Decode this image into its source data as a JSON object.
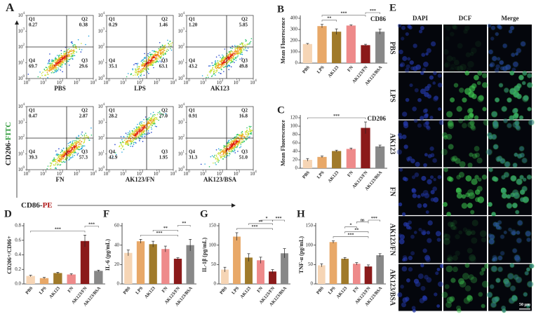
{
  "flow": {
    "panel": "A",
    "tick_base": "10",
    "tick_exponents": [
      0,
      1,
      2,
      3,
      4
    ],
    "ylabel_parts": [
      {
        "text": "CD206-",
        "color": "#222222"
      },
      {
        "text": "FITC",
        "color": "#2e9a3a"
      }
    ],
    "xlabel_parts": [
      {
        "text": "CD86-",
        "color": "#222222"
      },
      {
        "text": "PE",
        "color": "#b01818"
      }
    ],
    "samples": [
      {
        "name": "PBS",
        "quadrants": [
          {
            "name": "Q1",
            "value": 0.27
          },
          {
            "name": "Q2",
            "value": 0.38
          },
          {
            "name": "Q3",
            "value": 29.6
          },
          {
            "name": "Q4",
            "value": 69.7
          }
        ]
      },
      {
        "name": "LPS",
        "quadrants": [
          {
            "name": "Q1",
            "value": 0.29
          },
          {
            "name": "Q2",
            "value": 1.46
          },
          {
            "name": "Q3",
            "value": 63.1
          },
          {
            "name": "Q4",
            "value": 35.1
          }
        ]
      },
      {
        "name": "AK123",
        "quadrants": [
          {
            "name": "Q1",
            "value": 1.2,
            "label": "1.20"
          },
          {
            "name": "Q2",
            "value": 5.85
          },
          {
            "name": "Q3",
            "value": 49.8
          },
          {
            "name": "Q4",
            "value": 43.2
          }
        ]
      },
      {
        "name": "FN",
        "quadrants": [
          {
            "name": "Q1",
            "value": 0.47
          },
          {
            "name": "Q2",
            "value": 2.87
          },
          {
            "name": "Q3",
            "value": 57.3
          },
          {
            "name": "Q4",
            "value": 39.3
          }
        ]
      },
      {
        "name": "AK123/FN",
        "quadrants": [
          {
            "name": "Q1",
            "value": 28.2
          },
          {
            "name": "Q2",
            "value": 27,
            "label": "27.0"
          },
          {
            "name": "Q3",
            "value": 1.95
          },
          {
            "name": "Q4",
            "value": 42.9
          }
        ]
      },
      {
        "name": "AK123/BSA",
        "quadrants": [
          {
            "name": "Q1",
            "value": 0.91
          },
          {
            "name": "Q2",
            "value": 16.8
          },
          {
            "name": "Q3",
            "value": 51,
            "label": "51.0"
          },
          {
            "name": "Q4",
            "value": 31.3
          }
        ]
      }
    ]
  },
  "chart_data": [
    {
      "type": "bar",
      "panel": "B",
      "ylabel": "Mean Fluorescence",
      "marker": {
        "text": "CD86",
        "color": "#2e9a3a"
      },
      "categories": [
        "PBS",
        "LPS",
        "AK123",
        "FN",
        "AK123/FN",
        "AK123/BSA"
      ],
      "values": [
        170,
        330,
        280,
        335,
        160,
        280
      ],
      "errors": [
        5,
        15,
        25,
        5,
        8,
        22
      ],
      "colors": [
        "#f6d5b5",
        "#e8a868",
        "#a07a2a",
        "#ee8a8a",
        "#8b1a1a",
        "#888888"
      ],
      "ylim": [
        0,
        400
      ],
      "yticks": [
        0,
        100,
        200,
        300,
        400
      ],
      "significance": [
        {
          "pair": [
            "LPS",
            "AK123"
          ],
          "label": "**"
        },
        {
          "pair": [
            "LPS",
            "AK123/FN"
          ],
          "label": "***"
        },
        {
          "pair": [
            "AK123/FN",
            "AK123/BSA"
          ],
          "label": "***"
        }
      ]
    },
    {
      "type": "bar",
      "panel": "C",
      "ylabel": "Mean Fluorescence",
      "marker": {
        "text": "CD206",
        "color": "#8b1a1a"
      },
      "categories": [
        "PBS",
        "LPS",
        "AK123",
        "FN",
        "AK123/FN",
        "AK123/BSA"
      ],
      "values": [
        20,
        27,
        41,
        46,
        96,
        52
      ],
      "errors": [
        3,
        2,
        2,
        2,
        14,
        3
      ],
      "colors": [
        "#f6d5b5",
        "#e8a868",
        "#a07a2a",
        "#ee8a8a",
        "#8b1a1a",
        "#888888"
      ],
      "ylim": [
        0,
        120
      ],
      "yticks": [
        0,
        20,
        40,
        60,
        80,
        100,
        120
      ],
      "significance": [
        {
          "pair": [
            "PBS",
            "AK123/FN"
          ],
          "label": "***"
        }
      ]
    },
    {
      "type": "bar",
      "panel": "D",
      "ylabel": "CD206+/CD86+",
      "categories": [
        "PBS",
        "LPS",
        "AK123",
        "FN",
        "AK123/FN",
        "AK123/BSA"
      ],
      "values": [
        0.11,
        0.08,
        0.15,
        0.13,
        0.59,
        0.18
      ],
      "errors": [
        0.01,
        0.01,
        0.01,
        0.01,
        0.08,
        0.01
      ],
      "colors": [
        "#f6d5b5",
        "#e8a868",
        "#a07a2a",
        "#ee8a8a",
        "#8b1a1a",
        "#888888"
      ],
      "ylim": [
        0,
        0.8
      ],
      "yticks": [
        {
          "value": 0,
          "label": "0.0"
        },
        0.2,
        0.4,
        0.6,
        0.8
      ],
      "significance": [
        {
          "pair": [
            "PBS",
            "AK123/FN"
          ],
          "label": "***"
        },
        {
          "pair": [
            "AK123/FN",
            "AK123/BSA"
          ],
          "label": "***"
        }
      ]
    },
    {
      "type": "bar",
      "panel": "F",
      "ylabel": "IL-6 (pg/mL)",
      "categories": [
        "PBS",
        "LPS",
        "AK123",
        "FN",
        "AK123/FN",
        "AK123/BSA"
      ],
      "values": [
        32,
        44,
        41,
        36,
        26,
        40
      ],
      "errors": [
        3,
        2,
        3,
        3,
        1,
        6
      ],
      "colors": [
        "#f6d5b5",
        "#e8a868",
        "#a07a2a",
        "#ee8a8a",
        "#8b1a1a",
        "#888888"
      ],
      "ylim": [
        0,
        60
      ],
      "yticks": [
        0,
        20,
        40,
        60
      ],
      "significance": [
        {
          "pair": [
            "LPS",
            "AK123/FN"
          ],
          "label": "***"
        },
        {
          "pair": [
            "AK123",
            "AK123/FN"
          ],
          "label": "**"
        },
        {
          "pair": [
            "AK123/FN",
            "AK123/BSA"
          ],
          "label": "**"
        }
      ]
    },
    {
      "type": "bar",
      "panel": "G",
      "ylabel": "IL-1β (pg/mL)",
      "categories": [
        "PBS",
        "LPS",
        "AK123",
        "FN",
        "AK123/FN",
        "AK123/BSA"
      ],
      "values": [
        37,
        122,
        68,
        61,
        32,
        79
      ],
      "errors": [
        6,
        10,
        10,
        8,
        5,
        12
      ],
      "colors": [
        "#f6d5b5",
        "#e8a868",
        "#a07a2a",
        "#ee8a8a",
        "#8b1a1a",
        "#888888"
      ],
      "ylim": [
        0,
        150
      ],
      "yticks": [
        0,
        50,
        100,
        150
      ],
      "significance": [
        {
          "pair": [
            "LPS",
            "AK123/FN"
          ],
          "label": "***"
        },
        {
          "pair": [
            "AK123",
            "AK123/FN"
          ],
          "label": "**"
        },
        {
          "pair": [
            "FN",
            "AK123/FN"
          ],
          "label": "*"
        },
        {
          "pair": [
            "AK123/FN",
            "AK123/BSA"
          ],
          "label": "***"
        }
      ]
    },
    {
      "type": "bar",
      "panel": "H",
      "ylabel": "TNF-α (pg/mL)",
      "categories": [
        "PBS",
        "LPS",
        "AK123",
        "FN",
        "AK123/FN",
        "AK123/BSA"
      ],
      "values": [
        48,
        108,
        65,
        52,
        45,
        74
      ],
      "errors": [
        4,
        3,
        3,
        3,
        4,
        4
      ],
      "colors": [
        "#f6d5b5",
        "#e8a868",
        "#a07a2a",
        "#ee8a8a",
        "#8b1a1a",
        "#888888"
      ],
      "ylim": [
        0,
        150
      ],
      "yticks": [
        0,
        50,
        100,
        150
      ],
      "significance": [
        {
          "pair": [
            "LPS",
            "AK123/FN"
          ],
          "label": "***"
        },
        {
          "pair": [
            "AK123",
            "AK123/FN"
          ],
          "label": "**"
        },
        {
          "pair": [
            "AK123",
            "FN"
          ],
          "label": "*"
        },
        {
          "pair": [
            "FN",
            "AK123/FN"
          ],
          "label": "ns"
        },
        {
          "pair": [
            "AK123/FN",
            "AK123/BSA"
          ],
          "label": "***"
        }
      ]
    }
  ],
  "microscopy": {
    "panel": "E",
    "channels": [
      {
        "name": "DAPI",
        "color": "#2b3fb8"
      },
      {
        "name": "DCF",
        "color": "#2e9a3a"
      },
      {
        "name": "Merge",
        "color": "#222222"
      }
    ],
    "rows": [
      "PBS",
      "LPS",
      "AK123",
      "FN",
      "AK123/FN",
      "AK123/BSA"
    ],
    "scale_bar": "50 μm"
  }
}
